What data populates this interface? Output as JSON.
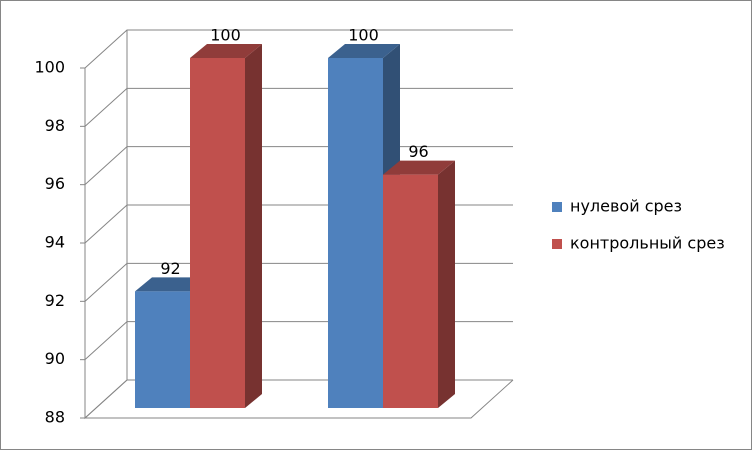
{
  "chart_data": {
    "type": "bar3d",
    "categories": [
      null,
      null
    ],
    "series": [
      {
        "name": "нулевой срез",
        "color": "#4f81bd",
        "values": [
          92,
          100
        ]
      },
      {
        "name": "контрольный срез",
        "color": "#c0504d",
        "values": [
          100,
          96
        ]
      }
    ],
    "ylim": [
      88,
      100
    ],
    "yticks": [
      88,
      90,
      92,
      94,
      96,
      98,
      100
    ],
    "grid": true,
    "legend": "right"
  }
}
